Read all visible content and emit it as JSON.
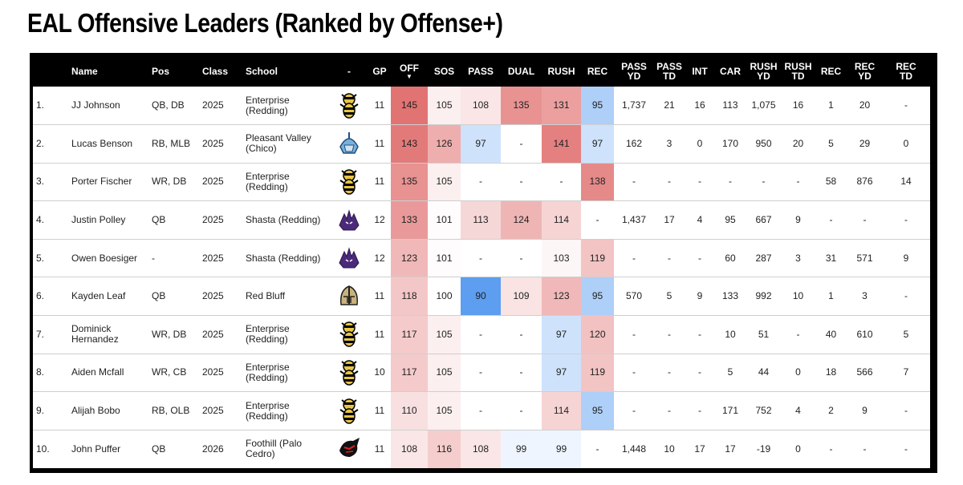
{
  "title": "EAL Offensive Leaders (Ranked by Offense+)",
  "sort_arrow": "▼",
  "columns": [
    {
      "key": "rank",
      "label": ""
    },
    {
      "key": "name",
      "label": "Name"
    },
    {
      "key": "pos",
      "label": "Pos"
    },
    {
      "key": "class",
      "label": "Class"
    },
    {
      "key": "school",
      "label": "School"
    },
    {
      "key": "logo",
      "label": "-"
    },
    {
      "key": "gp",
      "label": "GP"
    },
    {
      "key": "off",
      "label": "OFF"
    },
    {
      "key": "sos",
      "label": "SOS"
    },
    {
      "key": "pass",
      "label": "PASS"
    },
    {
      "key": "dual",
      "label": "DUAL"
    },
    {
      "key": "rush",
      "label": "RUSH"
    },
    {
      "key": "rec",
      "label": "REC"
    },
    {
      "key": "pass_yd",
      "label": "PASS\nYD"
    },
    {
      "key": "pass_td",
      "label": "PASS\nTD"
    },
    {
      "key": "int",
      "label": "INT"
    },
    {
      "key": "car",
      "label": "CAR"
    },
    {
      "key": "rush_yd",
      "label": "RUSH\nYD"
    },
    {
      "key": "rush_td",
      "label": "RUSH\nTD"
    },
    {
      "key": "rec2",
      "label": "REC"
    },
    {
      "key": "rec_yd",
      "label": "REC\nYD"
    },
    {
      "key": "rec_td",
      "label": "REC\nTD"
    }
  ],
  "rows": [
    {
      "rank": "1.",
      "name": "JJ Johnson",
      "pos": "QB, DB",
      "class": "2025",
      "school": "Enterprise (Redding)",
      "logo": "hornet-logo",
      "gp": "11",
      "off": "145",
      "sos": "105",
      "pass": "108",
      "dual": "135",
      "rush": "131",
      "rec": "95",
      "pass_yd": "1,737",
      "pass_td": "21",
      "int": "16",
      "car": "113",
      "rush_yd": "1,075",
      "rush_td": "16",
      "rec2": "1",
      "rec_yd": "20",
      "rec_td": "-"
    },
    {
      "rank": "2.",
      "name": "Lucas Benson",
      "pos": "RB, MLB",
      "class": "2025",
      "school": "Pleasant Valley (Chico)",
      "logo": "viking-logo",
      "gp": "11",
      "off": "143",
      "sos": "126",
      "pass": "97",
      "dual": "-",
      "rush": "141",
      "rec": "97",
      "pass_yd": "162",
      "pass_td": "3",
      "int": "0",
      "car": "170",
      "rush_yd": "950",
      "rush_td": "20",
      "rec2": "5",
      "rec_yd": "29",
      "rec_td": "0"
    },
    {
      "rank": "3.",
      "name": "Porter Fischer",
      "pos": "WR, DB",
      "class": "2025",
      "school": "Enterprise (Redding)",
      "logo": "hornet-logo",
      "gp": "11",
      "off": "135",
      "sos": "105",
      "pass": "-",
      "dual": "-",
      "rush": "-",
      "rec": "138",
      "pass_yd": "-",
      "pass_td": "-",
      "int": "-",
      "car": "-",
      "rush_yd": "-",
      "rush_td": "-",
      "rec2": "58",
      "rec_yd": "876",
      "rec_td": "14"
    },
    {
      "rank": "4.",
      "name": "Justin Polley",
      "pos": "QB",
      "class": "2025",
      "school": "Shasta (Redding)",
      "logo": "wolf-logo",
      "gp": "12",
      "off": "133",
      "sos": "101",
      "pass": "113",
      "dual": "124",
      "rush": "114",
      "rec": "-",
      "pass_yd": "1,437",
      "pass_td": "17",
      "int": "4",
      "car": "95",
      "rush_yd": "667",
      "rush_td": "9",
      "rec2": "-",
      "rec_yd": "-",
      "rec_td": "-"
    },
    {
      "rank": "5.",
      "name": "Owen Boesiger",
      "pos": "-",
      "class": "2025",
      "school": "Shasta (Redding)",
      "logo": "wolf-logo",
      "gp": "12",
      "off": "123",
      "sos": "101",
      "pass": "-",
      "dual": "-",
      "rush": "103",
      "rec": "119",
      "pass_yd": "-",
      "pass_td": "-",
      "int": "-",
      "car": "60",
      "rush_yd": "287",
      "rush_td": "3",
      "rec2": "31",
      "rec_yd": "571",
      "rec_td": "9"
    },
    {
      "rank": "6.",
      "name": "Kayden Leaf",
      "pos": "QB",
      "class": "2025",
      "school": "Red Bluff",
      "logo": "spartan-logo",
      "gp": "11",
      "off": "118",
      "sos": "100",
      "pass": "90",
      "dual": "109",
      "rush": "123",
      "rec": "95",
      "pass_yd": "570",
      "pass_td": "5",
      "int": "9",
      "car": "133",
      "rush_yd": "992",
      "rush_td": "10",
      "rec2": "1",
      "rec_yd": "3",
      "rec_td": "-"
    },
    {
      "rank": "7.",
      "name": "Dominick Hernandez",
      "pos": "WR, DB",
      "class": "2025",
      "school": "Enterprise (Redding)",
      "logo": "hornet-logo",
      "gp": "11",
      "off": "117",
      "sos": "105",
      "pass": "-",
      "dual": "-",
      "rush": "97",
      "rec": "120",
      "pass_yd": "-",
      "pass_td": "-",
      "int": "-",
      "car": "10",
      "rush_yd": "51",
      "rush_td": "-",
      "rec2": "40",
      "rec_yd": "610",
      "rec_td": "5"
    },
    {
      "rank": "8.",
      "name": "Aiden Mcfall",
      "pos": "WR, CB",
      "class": "2025",
      "school": "Enterprise (Redding)",
      "logo": "hornet-logo",
      "gp": "10",
      "off": "117",
      "sos": "105",
      "pass": "-",
      "dual": "-",
      "rush": "97",
      "rec": "119",
      "pass_yd": "-",
      "pass_td": "-",
      "int": "-",
      "car": "5",
      "rush_yd": "44",
      "rush_td": "0",
      "rec2": "18",
      "rec_yd": "566",
      "rec_td": "7"
    },
    {
      "rank": "9.",
      "name": "Alijah Bobo",
      "pos": "RB, OLB",
      "class": "2025",
      "school": "Enterprise (Redding)",
      "logo": "hornet-logo",
      "gp": "11",
      "off": "110",
      "sos": "105",
      "pass": "-",
      "dual": "-",
      "rush": "114",
      "rec": "95",
      "pass_yd": "-",
      "pass_td": "-",
      "int": "-",
      "car": "171",
      "rush_yd": "752",
      "rush_td": "4",
      "rec2": "2",
      "rec_yd": "9",
      "rec_td": "-"
    },
    {
      "rank": "10.",
      "name": "John Puffer",
      "pos": "QB",
      "class": "2026",
      "school": "Foothill (Palo Cedro)",
      "logo": "panther-logo",
      "gp": "11",
      "off": "108",
      "sos": "116",
      "pass": "108",
      "dual": "99",
      "rush": "99",
      "rec": "-",
      "pass_yd": "1,448",
      "pass_td": "10",
      "int": "17",
      "car": "17",
      "rush_yd": "-19",
      "rush_td": "0",
      "rec2": "-",
      "rec_yd": "-",
      "rec_td": "-"
    }
  ],
  "heat_columns": [
    "off",
    "sos",
    "pass",
    "dual",
    "rush",
    "rec"
  ],
  "colors": {
    "header_bg": "#000000",
    "high": "#e06c6c",
    "neutral": "#ffffff",
    "low": "#5d9ef0"
  }
}
